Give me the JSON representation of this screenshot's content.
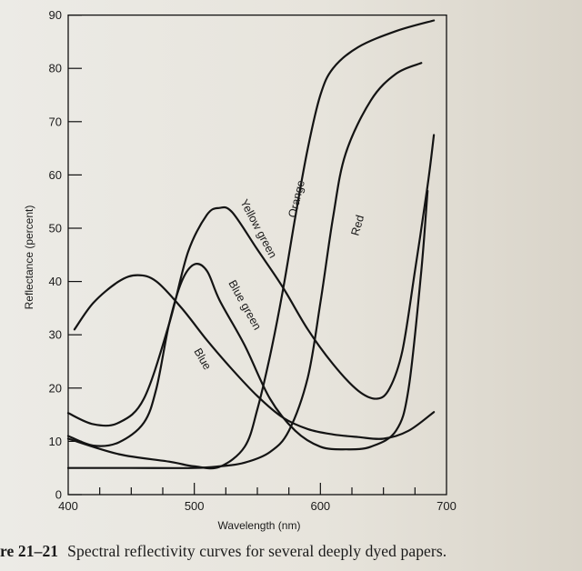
{
  "chart_data": {
    "type": "line",
    "title": "",
    "xlabel": "Wavelength (nm)",
    "ylabel": "Reflectance (percent)",
    "xlim": [
      400,
      700
    ],
    "ylim": [
      0,
      90
    ],
    "x_ticks": [
      400,
      500,
      600,
      700
    ],
    "y_ticks": [
      0,
      10,
      20,
      30,
      40,
      50,
      60,
      70,
      80,
      90
    ],
    "grid": false,
    "legend": "none",
    "series": [
      {
        "name": "Blue",
        "x": [
          405,
          420,
          440,
          455,
          470,
          490,
          510,
          530,
          550,
          570,
          590,
          610,
          630,
          650,
          670,
          690
        ],
        "y": [
          31,
          36,
          40,
          41.2,
          40,
          35,
          29,
          23.5,
          18.5,
          14.5,
          12.3,
          11.3,
          10.8,
          10.5,
          12,
          15.5
        ]
      },
      {
        "name": "Blue green",
        "x": [
          400,
          420,
          440,
          460,
          470,
          480,
          490,
          500,
          510,
          520,
          540,
          560,
          580,
          600,
          620,
          640,
          660,
          670,
          680,
          685
        ],
        "y": [
          11,
          9.2,
          9.8,
          13.5,
          20,
          32,
          40,
          43.2,
          42,
          36.5,
          28,
          18,
          12,
          9,
          8.5,
          9,
          12,
          20,
          42,
          57
        ]
      },
      {
        "name": "Yellow green",
        "x": [
          400,
          420,
          440,
          460,
          480,
          495,
          510,
          520,
          530,
          550,
          570,
          590,
          610,
          630,
          645,
          655,
          665,
          675,
          685,
          690
        ],
        "y": [
          15.3,
          13.2,
          13.5,
          18,
          32,
          45.5,
          52.5,
          53.8,
          53,
          46,
          39,
          31,
          24.5,
          19.5,
          18,
          20,
          27,
          42,
          58,
          67.5
        ]
      },
      {
        "name": "Orange",
        "x": [
          400,
          440,
          480,
          500,
          520,
          540,
          550,
          560,
          570,
          580,
          590,
          600,
          610,
          630,
          660,
          690
        ],
        "y": [
          10.5,
          7.6,
          6.2,
          5.3,
          5.2,
          9,
          16,
          26,
          38,
          52,
          65,
          75,
          80,
          84,
          87,
          89
        ]
      },
      {
        "name": "Red",
        "x": [
          400,
          450,
          500,
          520,
          540,
          560,
          575,
          590,
          600,
          610,
          620,
          640,
          660,
          680
        ],
        "y": [
          5,
          5,
          5,
          5.3,
          6,
          8,
          12,
          22,
          36,
          52,
          64,
          74,
          79,
          81
        ]
      }
    ]
  },
  "labels": {
    "blue": "Blue",
    "blue_green": "Blue green",
    "yellow_green": "Yellow green",
    "orange": "Orange",
    "red": "Red"
  },
  "caption": {
    "number": "re 21–21",
    "text": "Spectral reflectivity curves for several deeply dyed papers."
  }
}
